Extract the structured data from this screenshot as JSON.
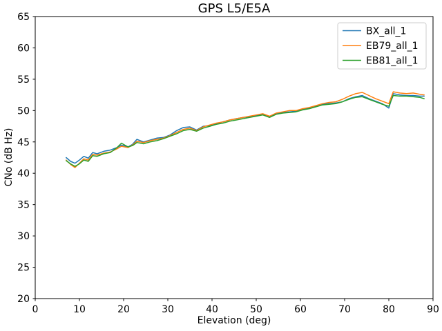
{
  "window": {
    "background": "#ffffff"
  },
  "chart_data": {
    "type": "line",
    "title": "GPS L5/E5A",
    "xlabel": "Elevation (deg)",
    "ylabel": "CNo (dB Hz)",
    "xlim": [
      0,
      90
    ],
    "ylim": [
      20,
      65
    ],
    "xticks": [
      0,
      10,
      20,
      30,
      40,
      50,
      60,
      70,
      80,
      90
    ],
    "yticks": [
      20,
      25,
      30,
      35,
      40,
      45,
      50,
      55,
      60,
      65
    ],
    "grid": false,
    "legend_position": "upper right",
    "x": [
      7,
      8,
      9,
      10,
      11,
      12,
      13,
      14,
      15.5,
      17,
      18.5,
      19.5,
      21,
      22,
      23,
      24.5,
      26,
      27.5,
      29,
      30.5,
      32,
      33.5,
      35,
      36.5,
      38,
      39.5,
      41,
      42.5,
      44,
      45.5,
      47,
      48.5,
      50,
      51.5,
      53,
      54.5,
      56,
      57.5,
      59,
      60.5,
      62,
      63.5,
      65,
      66.5,
      68,
      69.5,
      71,
      72.5,
      74,
      75.5,
      77,
      78.5,
      80,
      81,
      82.5,
      84,
      85.5,
      87,
      88
    ],
    "series": [
      {
        "name": "BX_all_1",
        "color": "#1f77b4",
        "values": [
          42.5,
          41.9,
          41.6,
          42.1,
          42.7,
          42.4,
          43.3,
          43.1,
          43.5,
          43.7,
          44.1,
          44.5,
          44.2,
          44.6,
          45.4,
          45.0,
          45.3,
          45.6,
          45.7,
          46.1,
          46.8,
          47.3,
          47.4,
          46.9,
          47.5,
          47.6,
          47.9,
          48.2,
          48.5,
          48.7,
          48.9,
          49.0,
          49.2,
          49.4,
          49.0,
          49.5,
          49.7,
          49.8,
          49.9,
          50.2,
          50.4,
          50.7,
          51.0,
          51.1,
          51.2,
          51.4,
          51.9,
          52.2,
          52.4,
          51.9,
          51.5,
          51.1,
          50.4,
          52.7,
          52.5,
          52.4,
          52.4,
          52.3,
          52.3
        ]
      },
      {
        "name": "EB79_all_1",
        "color": "#ff7f0e",
        "values": [
          42.1,
          41.4,
          40.9,
          41.6,
          42.3,
          42.1,
          43.0,
          42.9,
          43.2,
          43.4,
          43.9,
          44.3,
          44.1,
          44.5,
          45.1,
          44.9,
          45.2,
          45.4,
          45.6,
          46.0,
          46.5,
          47.0,
          47.2,
          46.8,
          47.4,
          47.7,
          48.0,
          48.2,
          48.5,
          48.7,
          48.9,
          49.1,
          49.3,
          49.5,
          49.1,
          49.6,
          49.8,
          50.0,
          50.0,
          50.3,
          50.5,
          50.8,
          51.1,
          51.3,
          51.4,
          51.8,
          52.3,
          52.7,
          52.9,
          52.4,
          51.9,
          51.5,
          51.1,
          53.0,
          52.8,
          52.7,
          52.8,
          52.6,
          52.5
        ]
      },
      {
        "name": "EB81_all_1",
        "color": "#2ca02c",
        "values": [
          42.0,
          41.5,
          41.1,
          41.5,
          42.1,
          41.9,
          42.8,
          42.7,
          43.1,
          43.3,
          44.1,
          44.8,
          44.2,
          44.4,
          44.9,
          44.7,
          45.0,
          45.2,
          45.5,
          45.9,
          46.3,
          46.8,
          47.0,
          46.7,
          47.2,
          47.5,
          47.8,
          48.0,
          48.3,
          48.5,
          48.7,
          48.9,
          49.1,
          49.3,
          48.9,
          49.4,
          49.6,
          49.7,
          49.8,
          50.1,
          50.3,
          50.6,
          50.9,
          51.0,
          51.1,
          51.4,
          51.8,
          52.1,
          52.2,
          51.8,
          51.4,
          51.0,
          50.7,
          52.4,
          52.3,
          52.3,
          52.2,
          52.1,
          51.9
        ]
      }
    ]
  }
}
